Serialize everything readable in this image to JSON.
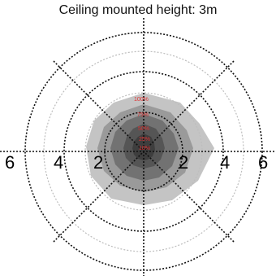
{
  "title": "Ceiling mounted height: 3m",
  "diagram": {
    "type": "polar-coverage",
    "axis_labels": [
      "6",
      "4",
      "2",
      "2",
      "4",
      "6"
    ],
    "percent_labels": [
      "100%",
      "75%",
      "50%",
      "25%",
      "10%"
    ],
    "ring_values": [
      2,
      4,
      6
    ],
    "levels": [
      {
        "label": "100%",
        "fill": "#c4c4c4"
      },
      {
        "label": "75%",
        "fill": "#9a9a9a"
      },
      {
        "label": "50%",
        "fill": "#727272"
      },
      {
        "label": "25%",
        "fill": "#555555"
      },
      {
        "label": "10%",
        "fill": "#3e3e3e"
      }
    ],
    "colors": {
      "percent_text": "#e03030",
      "rings": "#111111",
      "minor_rings": "#bdbdbd"
    }
  }
}
